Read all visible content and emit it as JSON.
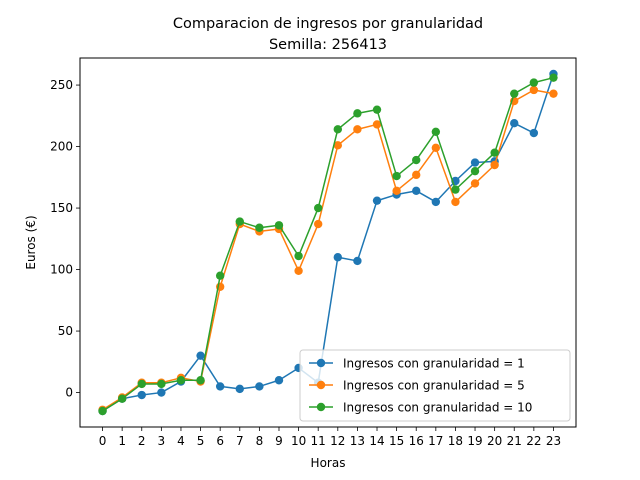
{
  "chart_data": {
    "type": "line",
    "title": "Comparacion de ingresos por granularidad",
    "subtitle": "Semilla: 256413",
    "xlabel": "Horas",
    "ylabel": "Euros (€)",
    "x": [
      0,
      1,
      2,
      3,
      4,
      5,
      6,
      7,
      8,
      9,
      10,
      11,
      12,
      13,
      14,
      15,
      16,
      17,
      18,
      19,
      20,
      21,
      22,
      23
    ],
    "xticks": [
      "0",
      "1",
      "2",
      "3",
      "4",
      "5",
      "6",
      "7",
      "8",
      "9",
      "10",
      "11",
      "12",
      "13",
      "14",
      "15",
      "16",
      "17",
      "18",
      "19",
      "20",
      "21",
      "22",
      "23"
    ],
    "yticks": [
      "0",
      "50",
      "100",
      "150",
      "200",
      "250"
    ],
    "yticks_values": [
      0,
      50,
      100,
      150,
      200,
      250
    ],
    "xlim": [
      -1.15,
      24.15
    ],
    "ylim": [
      -28,
      272
    ],
    "grid": false,
    "legend_position": "lower-right",
    "series": [
      {
        "name": "Ingresos con granularidad = 1",
        "color": "#1f77b4",
        "values": [
          -15,
          -5,
          -2,
          0,
          9,
          30,
          5,
          3,
          5,
          10,
          20,
          8,
          110,
          107,
          156,
          161,
          164,
          155,
          172,
          187,
          188,
          219,
          211,
          259
        ]
      },
      {
        "name": "Ingresos con granularidad = 5",
        "color": "#ff7f0e",
        "values": [
          -14,
          -4,
          8,
          8,
          12,
          9,
          86,
          137,
          131,
          133,
          99,
          137,
          201,
          214,
          218,
          164,
          177,
          199,
          155,
          170,
          185,
          237,
          246,
          243
        ]
      },
      {
        "name": "Ingresos con granularidad = 10",
        "color": "#2ca02c",
        "values": [
          -15,
          -5,
          7,
          7,
          10,
          10,
          95,
          139,
          134,
          136,
          111,
          150,
          214,
          227,
          230,
          176,
          189,
          212,
          165,
          180,
          195,
          243,
          252,
          256
        ]
      }
    ]
  }
}
